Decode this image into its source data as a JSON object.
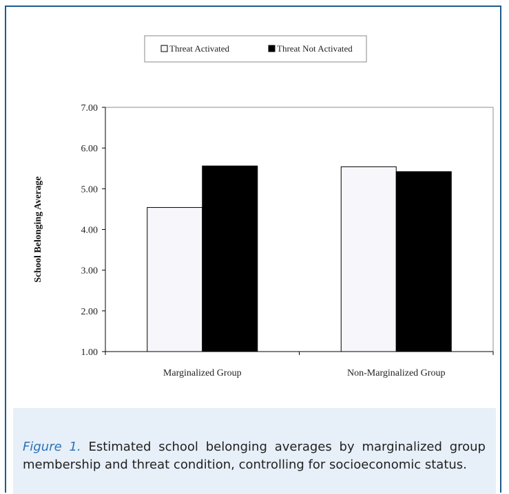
{
  "chart_data": {
    "type": "bar",
    "categories": [
      "Marginalized Group",
      "Non-Marginalized Group"
    ],
    "series": [
      {
        "name": "Threat Activated",
        "color": "#f7f7fb",
        "values": [
          4.54,
          5.54
        ]
      },
      {
        "name": "Threat Not Activated",
        "color": "#000000",
        "values": [
          5.56,
          5.42
        ]
      }
    ],
    "ylabel": "School Belonging Average",
    "xlabel": "",
    "ylim": [
      1.0,
      7.0
    ],
    "yticks": [
      "1.00",
      "2.00",
      "3.00",
      "4.00",
      "5.00",
      "6.00",
      "7.00"
    ],
    "legend_position": "top-center",
    "grid": false
  },
  "caption": {
    "label": "Figure 1.",
    "text": "Estimated school belonging averages by marginalized group membership and threat condition, controlling for socioeconomic status."
  }
}
